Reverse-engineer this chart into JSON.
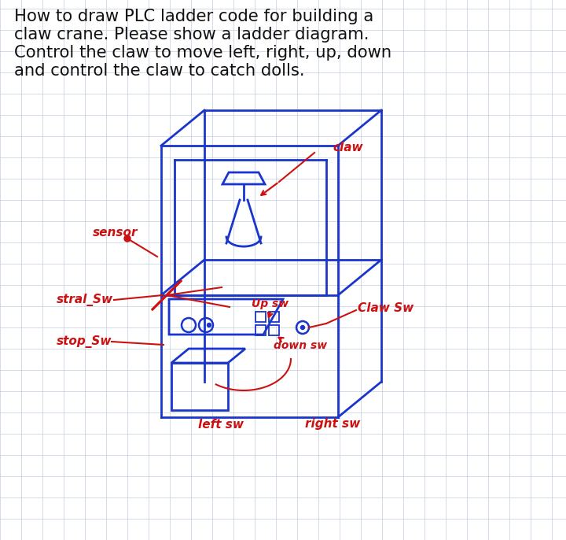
{
  "title_lines": [
    "How to draw PLC ladder code for building a",
    "claw crane. Please show a ladder diagram.",
    "Control the claw to move left, right, up, down",
    "and control the claw to catch dolls."
  ],
  "title_fontsize": 15.2,
  "title_color": "#111111",
  "bg_color": "#ffffff",
  "grid_color": "#c0cfe0",
  "draw_color": "#1a35cc",
  "label_color": "#cc1111",
  "label_fontsize": 11.0,
  "figure_width": 7.2,
  "figure_height": 6.86
}
